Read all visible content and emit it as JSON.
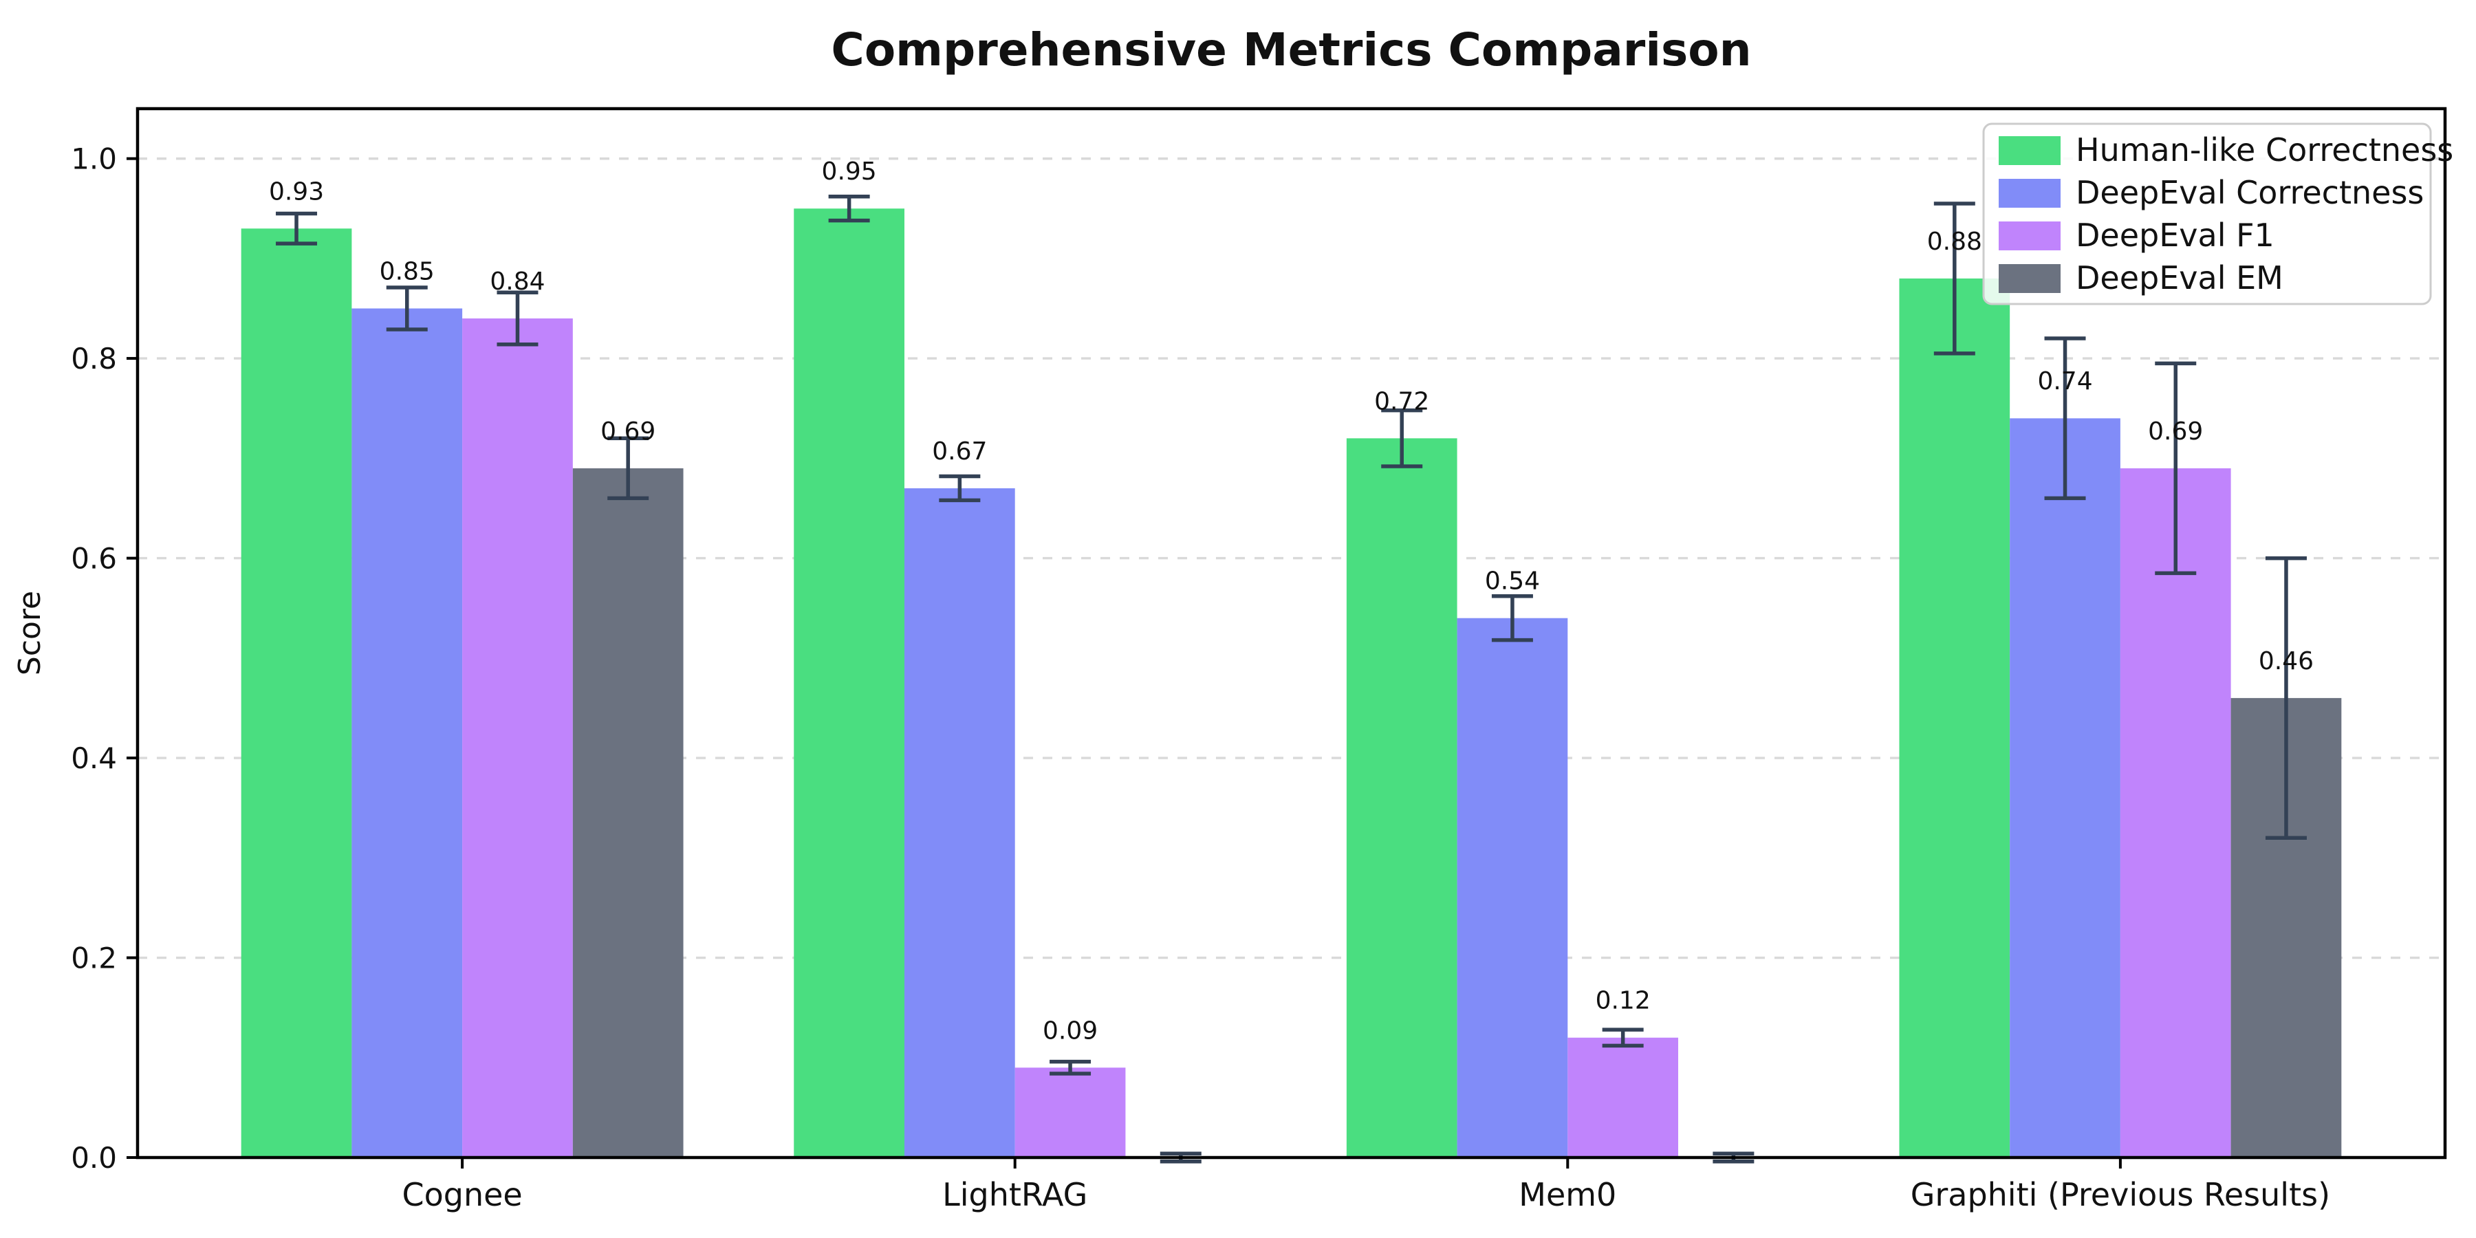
{
  "figure": {
    "title": "Comprehensive Metrics Comparison"
  },
  "chart_data": {
    "type": "bar",
    "title": "Comprehensive Metrics Comparison",
    "xlabel": "",
    "ylabel": "Score",
    "categories": [
      "Cognee",
      "LightRAG",
      "Mem0",
      "Graphiti (Previous Results)"
    ],
    "series": [
      {
        "name": "Human-like Correctness",
        "color": "#4ADE80",
        "values": [
          0.93,
          0.95,
          0.72,
          0.88
        ],
        "errors": [
          0.015,
          0.012,
          0.028,
          0.075
        ],
        "value_labels": [
          "0.93",
          "0.95",
          "0.72",
          "0.88"
        ]
      },
      {
        "name": "DeepEval Correctness",
        "color": "#818CF8",
        "values": [
          0.85,
          0.67,
          0.54,
          0.74
        ],
        "errors": [
          0.021,
          0.012,
          0.022,
          0.08
        ],
        "value_labels": [
          "0.85",
          "0.67",
          "0.54",
          "0.74"
        ]
      },
      {
        "name": "DeepEval F1",
        "color": "#C084FC",
        "values": [
          0.84,
          0.09,
          0.12,
          0.69
        ],
        "errors": [
          0.026,
          0.006,
          0.008,
          0.105
        ],
        "value_labels": [
          "0.84",
          "0.09",
          "0.12",
          "0.69"
        ]
      },
      {
        "name": "DeepEval EM",
        "color": "#6B7280",
        "values": [
          0.69,
          0.0,
          0.0,
          0.46
        ],
        "errors": [
          0.03,
          0.004,
          0.004,
          0.14
        ],
        "value_labels": [
          "0.69",
          null,
          null,
          "0.46"
        ]
      }
    ],
    "yticks": [
      "0.0",
      "0.2",
      "0.4",
      "0.6",
      "0.8",
      "1.0"
    ],
    "ylim": [
      0,
      1.05
    ],
    "grid": {
      "axis": "y",
      "style": "dashed",
      "color": "#d9d9d9"
    },
    "legend": {
      "position": "upper right",
      "entries": [
        "Human-like Correctness",
        "DeepEval Correctness",
        "DeepEval F1",
        "DeepEval EM"
      ]
    },
    "colors": {
      "axis": "#000000",
      "errorbar": "#334155",
      "text": "#111111",
      "legend_border": "#cccccc"
    }
  }
}
